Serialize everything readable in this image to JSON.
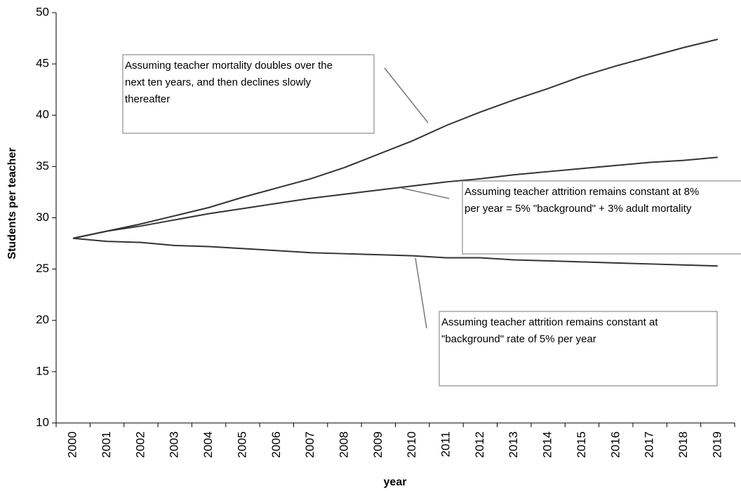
{
  "chart_data": {
    "type": "line",
    "x_label": "year",
    "y_label": "Students per teacher",
    "categories": [
      "2000",
      "2001",
      "2002",
      "2003",
      "2004",
      "2005",
      "2006",
      "2007",
      "2008",
      "2009",
      "2010",
      "2011",
      "2012",
      "2013",
      "2014",
      "2015",
      "2016",
      "2017",
      "2018",
      "2019"
    ],
    "series": [
      {
        "color": "#333333",
        "values": [
          28,
          28.7,
          29.4,
          30.2,
          31.0,
          32.0,
          32.9,
          33.8,
          34.9,
          36.2,
          37.5,
          39.0,
          40.3,
          41.5,
          42.6,
          43.8,
          44.8,
          45.7,
          46.6,
          47.4
        ]
      },
      {
        "color": "#333333",
        "values": [
          28,
          28.7,
          29.2,
          29.8,
          30.4,
          30.9,
          31.4,
          31.9,
          32.3,
          32.7,
          33.1,
          33.5,
          33.8,
          34.2,
          34.5,
          34.8,
          35.1,
          35.4,
          35.6,
          35.9
        ]
      },
      {
        "color": "#333333",
        "values": [
          28,
          27.7,
          27.6,
          27.3,
          27.2,
          27.0,
          26.8,
          26.6,
          26.5,
          26.4,
          26.3,
          26.1,
          26.1,
          25.9,
          25.8,
          25.7,
          25.6,
          25.5,
          25.4,
          25.3
        ]
      }
    ],
    "annotations": [
      [
        "Assuming teacher mortality doubles over the",
        "next ten years, and then declines slowly",
        "thereafter"
      ],
      [
        "Assuming teacher attrition remains constant at 8%",
        "per year = 5% \"background\"  + 3% adult mortality"
      ],
      [
        "Assuming teacher attrition remains constant at",
        "\"background\" rate of 5% per year"
      ]
    ],
    "ylim": [
      10,
      50
    ],
    "yticks": [
      10,
      15,
      20,
      25,
      30,
      35,
      40,
      45,
      50
    ],
    "grid": false
  }
}
